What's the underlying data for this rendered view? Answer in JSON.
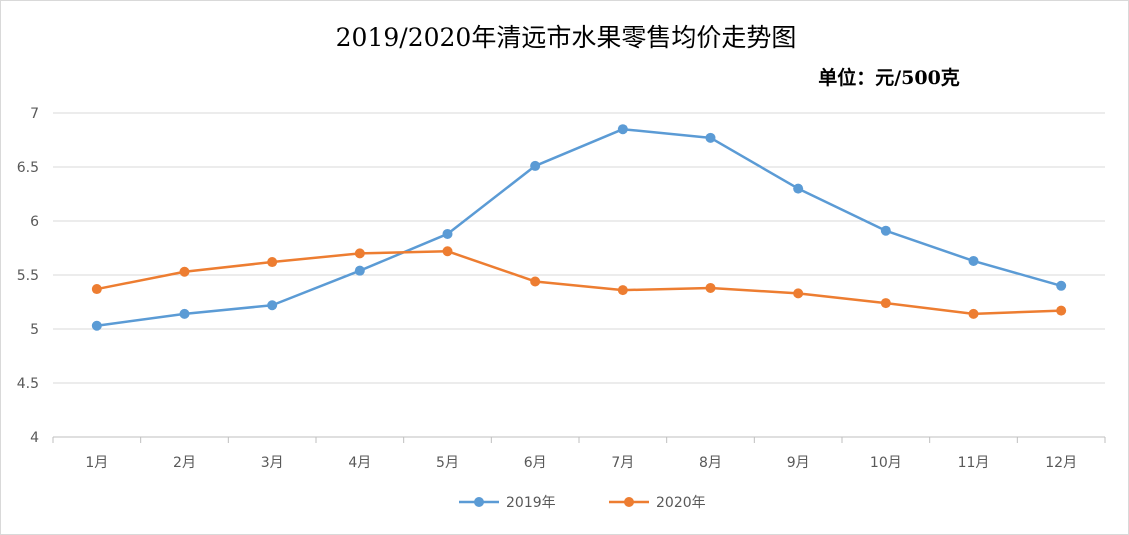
{
  "chart_data": {
    "type": "line",
    "title": "2019/2020年清远市水果零售均价走势图",
    "subtitle": "单位：元/500克",
    "categories": [
      "1月",
      "2月",
      "3月",
      "4月",
      "5月",
      "6月",
      "7月",
      "8月",
      "9月",
      "10月",
      "11月",
      "12月"
    ],
    "ylim": [
      4,
      7
    ],
    "yticks": [
      "4",
      "4.5",
      "5",
      "5.5",
      "6",
      "6.5",
      "7"
    ],
    "grid": true,
    "legend_position": "bottom",
    "series": [
      {
        "name": "2019年",
        "color": "#5b9bd5",
        "values": [
          5.03,
          5.14,
          5.22,
          5.54,
          5.88,
          6.51,
          6.85,
          6.77,
          6.3,
          5.91,
          5.63,
          5.4
        ]
      },
      {
        "name": "2020年",
        "color": "#ed7d31",
        "values": [
          5.37,
          5.53,
          5.62,
          5.7,
          5.72,
          5.44,
          5.36,
          5.38,
          5.33,
          5.24,
          5.14,
          5.17
        ]
      }
    ]
  }
}
